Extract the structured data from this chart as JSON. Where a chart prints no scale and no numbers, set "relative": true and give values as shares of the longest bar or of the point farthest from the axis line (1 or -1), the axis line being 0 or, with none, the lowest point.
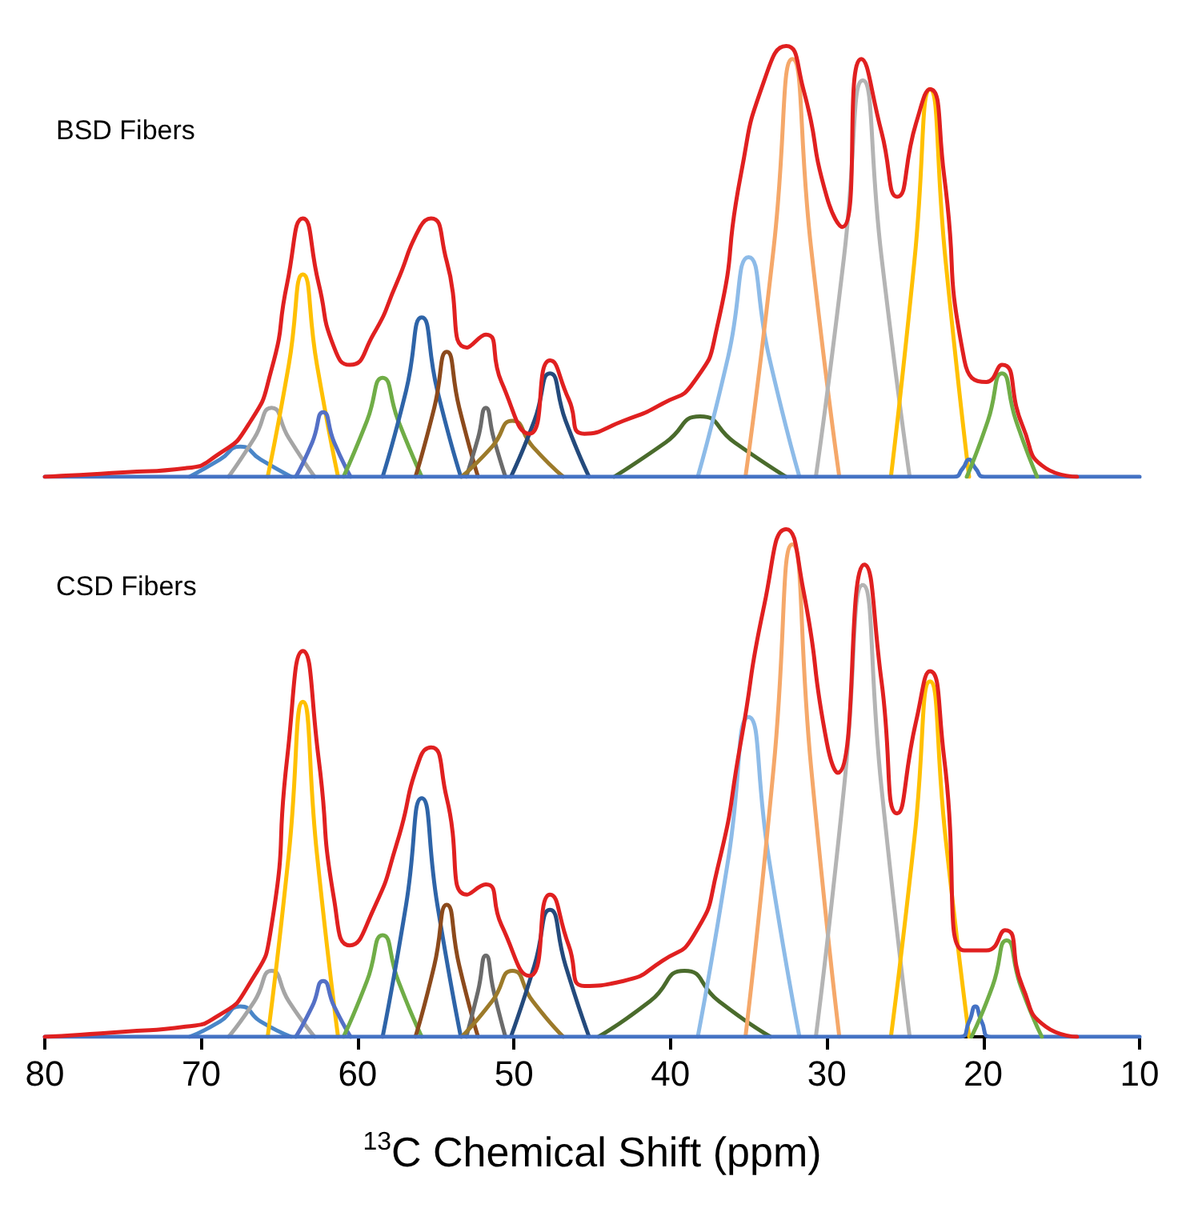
{
  "chart_data": [
    {
      "type": "line",
      "title": "BSD Fibers",
      "relative": true,
      "xlim": [
        80,
        10
      ],
      "tick_labels": false,
      "marker": "none",
      "line_style": "solid",
      "series": [
        {
          "color": "#4a86c8",
          "x": [
            70.75,
            68.8,
            67.5,
            66.2,
            64.25
          ],
          "values": [
            0,
            0.04,
            0.07,
            0.04,
            0
          ]
        },
        {
          "color": "#a5a5a5",
          "x": [
            68.25,
            66.6,
            65.5,
            64.4,
            62.75
          ],
          "values": [
            0,
            0.09,
            0.16,
            0.09,
            0
          ]
        },
        {
          "color": "#ffc000",
          "x": [
            65.75,
            64.4,
            63.5,
            62.6,
            61.25
          ],
          "values": [
            0,
            0.26,
            0.47,
            0.26,
            0
          ]
        },
        {
          "color": "#5470c6",
          "x": [
            63.95,
            62.9,
            62.2,
            61.5,
            60.45
          ],
          "values": [
            0,
            0.08,
            0.15,
            0.08,
            0
          ]
        },
        {
          "color": "#70ad47",
          "x": [
            60.9,
            59.4,
            58.4,
            57.4,
            55.9
          ],
          "values": [
            0,
            0.13,
            0.23,
            0.13,
            0
          ]
        },
        {
          "color": "#2e64a8",
          "x": [
            58.4,
            56.9,
            55.9,
            54.9,
            53.4
          ],
          "values": [
            0,
            0.2,
            0.37,
            0.2,
            0
          ]
        },
        {
          "color": "#8c4a1c",
          "x": [
            56.3,
            55.1,
            54.3,
            53.5,
            52.3
          ],
          "values": [
            0,
            0.16,
            0.29,
            0.16,
            0
          ]
        },
        {
          "color": "#6b6b6b",
          "x": [
            53.05,
            52.3,
            51.8,
            51.3,
            50.55
          ],
          "values": [
            0,
            0.09,
            0.16,
            0.09,
            0
          ]
        },
        {
          "color": "#9c7a2a",
          "x": [
            53.35,
            51.4,
            50.1,
            48.8,
            46.85
          ],
          "values": [
            0,
            0.07,
            0.13,
            0.07,
            0
          ]
        },
        {
          "color": "#244a7c",
          "x": [
            50.2,
            48.7,
            47.7,
            46.7,
            45.2
          ],
          "values": [
            0,
            0.13,
            0.24,
            0.13,
            0
          ]
        },
        {
          "color": "#4a6b2c",
          "x": [
            43.6,
            40.3,
            38.1,
            35.9,
            32.6
          ],
          "values": [
            0,
            0.08,
            0.14,
            0.08,
            0
          ]
        },
        {
          "color": "#8dbbe8",
          "x": [
            38.25,
            36.3,
            35,
            33.7,
            31.75
          ],
          "values": [
            0,
            0.28,
            0.51,
            0.28,
            0
          ]
        },
        {
          "color": "#f5a86a",
          "x": [
            35.2,
            33.4,
            32.2,
            31,
            29.2
          ],
          "values": [
            0,
            0.53,
            0.97,
            0.53,
            0
          ]
        },
        {
          "color": "#b4b4b4",
          "x": [
            30.7,
            28.9,
            27.7,
            26.5,
            24.7
          ],
          "values": [
            0,
            0.51,
            0.92,
            0.51,
            0
          ]
        },
        {
          "color": "#ffc000",
          "x": [
            25.9,
            24.4,
            23.4,
            22.4,
            20.9
          ],
          "values": [
            0,
            0.5,
            0.9,
            0.5,
            0
          ]
        },
        {
          "color": "#4472c4",
          "x": [
            80,
            21.9,
            21.3,
            20.9,
            20.5,
            19.9,
            10
          ],
          "values": [
            0,
            0,
            0.02,
            0.04,
            0.02,
            0,
            0
          ]
        },
        {
          "color": "#70ad47",
          "x": [
            21.05,
            19.7,
            18.8,
            17.9,
            16.55
          ],
          "values": [
            0,
            0.13,
            0.24,
            0.13,
            0
          ]
        },
        {
          "color": "#e02020",
          "x": [
            80,
            75,
            71,
            69,
            67,
            65.5,
            64.5,
            63.5,
            62.5,
            61.5,
            60.5,
            59,
            57.5,
            56,
            55.3,
            54.3,
            53,
            51.8,
            50.8,
            49,
            47.7,
            46.5,
            45.5,
            43,
            40.5,
            38.5,
            37,
            35.5,
            34,
            32.6,
            31.5,
            30,
            29,
            27.8,
            26.5,
            25.5,
            24.3,
            23.4,
            22.5,
            21.2,
            19.8,
            18.8,
            17.5,
            16,
            14
          ],
          "values": [
            0,
            0.01,
            0.02,
            0.05,
            0.12,
            0.25,
            0.45,
            0.6,
            0.45,
            0.3,
            0.26,
            0.33,
            0.45,
            0.58,
            0.6,
            0.5,
            0.3,
            0.33,
            0.22,
            0.1,
            0.27,
            0.18,
            0.1,
            0.13,
            0.17,
            0.22,
            0.35,
            0.7,
            0.92,
            1,
            0.9,
            0.65,
            0.58,
            0.97,
            0.8,
            0.65,
            0.82,
            0.9,
            0.7,
            0.27,
            0.22,
            0.26,
            0.12,
            0.02,
            0
          ]
        }
      ]
    },
    {
      "type": "line",
      "title": "CSD Fibers",
      "xlabel": "$^{13}$C Chemical Shift (ppm)",
      "relative": true,
      "xlim": [
        80,
        10
      ],
      "xticks": [
        80,
        70,
        60,
        50,
        40,
        30,
        20,
        10
      ],
      "tick_labels": "x",
      "marker": "none",
      "line_style": "solid",
      "series": [
        {
          "color": "#4a86c8",
          "x": [
            70.75,
            68.8,
            67.5,
            66.2,
            64.25
          ],
          "values": [
            0,
            0.03,
            0.06,
            0.03,
            0
          ]
        },
        {
          "color": "#a5a5a5",
          "x": [
            68.25,
            66.6,
            65.5,
            64.4,
            62.75
          ],
          "values": [
            0,
            0.07,
            0.13,
            0.07,
            0
          ]
        },
        {
          "color": "#ffc000",
          "x": [
            65.75,
            64.4,
            63.5,
            62.6,
            61.25
          ],
          "values": [
            0,
            0.36,
            0.66,
            0.36,
            0
          ]
        },
        {
          "color": "#5470c6",
          "x": [
            63.95,
            62.9,
            62.2,
            61.5,
            60.45
          ],
          "values": [
            0,
            0.06,
            0.11,
            0.06,
            0
          ]
        },
        {
          "color": "#70ad47",
          "x": [
            60.9,
            59.4,
            58.4,
            57.4,
            55.9
          ],
          "values": [
            0,
            0.11,
            0.2,
            0.11,
            0
          ]
        },
        {
          "color": "#2e64a8",
          "x": [
            58.4,
            56.9,
            55.9,
            54.9,
            53.4
          ],
          "values": [
            0,
            0.26,
            0.47,
            0.26,
            0
          ]
        },
        {
          "color": "#8c4a1c",
          "x": [
            56.3,
            55.1,
            54.3,
            53.5,
            52.3
          ],
          "values": [
            0,
            0.14,
            0.26,
            0.14,
            0
          ]
        },
        {
          "color": "#6b6b6b",
          "x": [
            53.05,
            52.3,
            51.8,
            51.3,
            50.55
          ],
          "values": [
            0,
            0.09,
            0.16,
            0.09,
            0
          ]
        },
        {
          "color": "#9c7a2a",
          "x": [
            53.35,
            51.4,
            50.1,
            48.8,
            46.85
          ],
          "values": [
            0,
            0.07,
            0.13,
            0.07,
            0
          ]
        },
        {
          "color": "#244a7c",
          "x": [
            50.2,
            48.7,
            47.7,
            46.7,
            45.2
          ],
          "values": [
            0,
            0.14,
            0.25,
            0.14,
            0
          ]
        },
        {
          "color": "#4a6b2c",
          "x": [
            44.6,
            41.3,
            39.1,
            36.9,
            33.6
          ],
          "values": [
            0,
            0.07,
            0.13,
            0.07,
            0
          ]
        },
        {
          "color": "#8dbbe8",
          "x": [
            38.25,
            36.3,
            35,
            33.7,
            31.75
          ],
          "values": [
            0,
            0.35,
            0.63,
            0.35,
            0
          ]
        },
        {
          "color": "#f5a86a",
          "x": [
            35.2,
            33.4,
            32.2,
            31,
            29.2
          ],
          "values": [
            0,
            0.53,
            0.97,
            0.53,
            0
          ]
        },
        {
          "color": "#b4b4b4",
          "x": [
            30.7,
            28.9,
            27.7,
            26.5,
            24.7
          ],
          "values": [
            0,
            0.49,
            0.89,
            0.49,
            0
          ]
        },
        {
          "color": "#ffc000",
          "x": [
            25.9,
            24.4,
            23.4,
            22.4,
            20.9
          ],
          "values": [
            0,
            0.39,
            0.7,
            0.39,
            0
          ]
        },
        {
          "color": "#4472c4",
          "x": [
            80,
            21.5,
            20.9,
            20.5,
            20.1,
            19.5,
            10
          ],
          "values": [
            0,
            0,
            0.03,
            0.06,
            0.03,
            0,
            0
          ]
        },
        {
          "color": "#70ad47",
          "x": [
            20.75,
            19.4,
            18.5,
            17.6,
            16.25
          ],
          "values": [
            0,
            0.1,
            0.19,
            0.1,
            0
          ]
        },
        {
          "color": "#e02020",
          "x": [
            80,
            75,
            71,
            69,
            67,
            65.5,
            64.5,
            63.5,
            62.5,
            61.5,
            60.5,
            59,
            57.5,
            56,
            55.3,
            54.3,
            53,
            51.8,
            50.8,
            49,
            47.7,
            46.5,
            45.5,
            43,
            40.5,
            38.5,
            37,
            35.5,
            34,
            32.6,
            31.5,
            30,
            29.3,
            27.6,
            26.5,
            25.5,
            24.3,
            23.4,
            22.5,
            21.2,
            19.8,
            18.6,
            17.5,
            16,
            14
          ],
          "values": [
            0,
            0.01,
            0.02,
            0.04,
            0.1,
            0.22,
            0.55,
            0.76,
            0.55,
            0.27,
            0.18,
            0.25,
            0.38,
            0.55,
            0.57,
            0.47,
            0.28,
            0.3,
            0.22,
            0.12,
            0.28,
            0.18,
            0.1,
            0.11,
            0.15,
            0.2,
            0.33,
            0.58,
            0.85,
            1,
            0.88,
            0.58,
            0.52,
            0.93,
            0.7,
            0.44,
            0.62,
            0.72,
            0.55,
            0.17,
            0.17,
            0.21,
            0.1,
            0.02,
            0
          ]
        }
      ]
    }
  ]
}
